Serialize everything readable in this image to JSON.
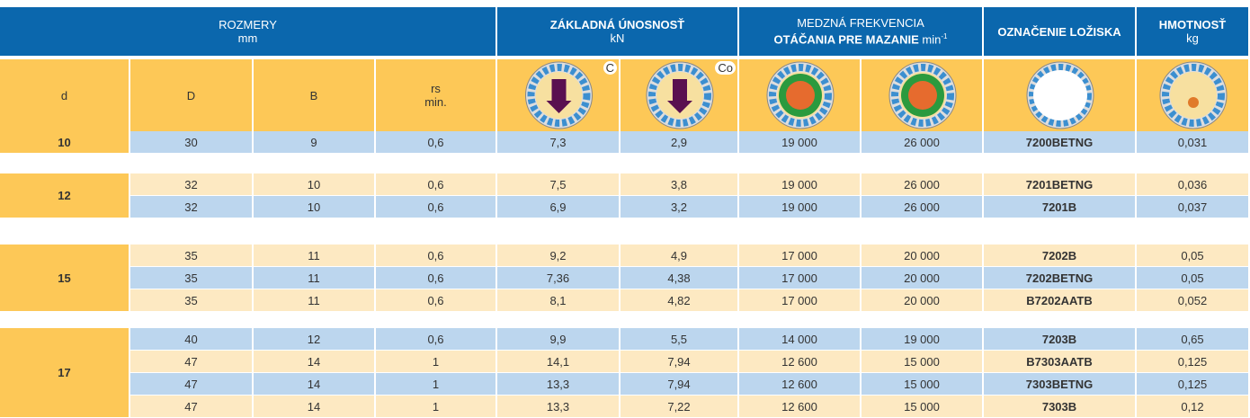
{
  "header": {
    "groups": [
      {
        "lines": [
          "ROZMERY",
          "mm"
        ]
      },
      {
        "lines": [
          "ZÁKLADNÁ ÚNOSNOSŤ",
          "kN"
        ]
      },
      {
        "lines": [
          "MEDZNÁ FREKVENCIA",
          "OTÁČANIA PRE MAZANIE"
        ],
        "unit": "min",
        "sup": "-1"
      },
      {
        "lines": [
          "OZNAČENIE LOŽISKA"
        ]
      },
      {
        "lines": [
          "HMOTNOSŤ",
          "kg"
        ]
      }
    ],
    "columns": [
      "d",
      "D",
      "B",
      "rs",
      "min.",
      "C",
      "Co"
    ]
  },
  "table": {
    "groups": [
      {
        "d": "10",
        "rows": [
          [
            "30",
            "9",
            "0,6",
            "7,3",
            "2,9",
            "19 000",
            "26 000",
            "7200BETNG",
            "0,031"
          ]
        ]
      },
      {
        "d": "12",
        "rows": [
          [
            "32",
            "10",
            "0,6",
            "7,5",
            "3,8",
            "19 000",
            "26 000",
            "7201BETNG",
            "0,036"
          ],
          [
            "32",
            "10",
            "0,6",
            "6,9",
            "3,2",
            "19 000",
            "26 000",
            "7201B",
            "0,037"
          ]
        ]
      },
      {
        "d": "15",
        "rows": [
          [
            "35",
            "11",
            "0,6",
            "9,2",
            "4,9",
            "17 000",
            "20 000",
            "7202B",
            "0,05"
          ],
          [
            "35",
            "11",
            "0,6",
            "7,36",
            "4,38",
            "17 000",
            "20 000",
            "7202BETNG",
            "0,05"
          ],
          [
            "35",
            "11",
            "0,6",
            "8,1",
            "4,82",
            "17 000",
            "20 000",
            "B7202AATB",
            "0,052"
          ]
        ]
      },
      {
        "d": "17",
        "rows": [
          [
            "40",
            "12",
            "0,6",
            "9,9",
            "5,5",
            "14 000",
            "19 000",
            "7203B",
            "0,65"
          ],
          [
            "47",
            "14",
            "1",
            "14,1",
            "7,94",
            "12 600",
            "15 000",
            "B7303AATB",
            "0,125"
          ],
          [
            "47",
            "14",
            "1",
            "13,3",
            "7,94",
            "12 600",
            "15 000",
            "7303BETNG",
            "0,125"
          ],
          [
            "47",
            "14",
            "1",
            "13,3",
            "7,22",
            "12 600",
            "15 000",
            "7303B",
            "0,12"
          ]
        ]
      }
    ]
  }
}
